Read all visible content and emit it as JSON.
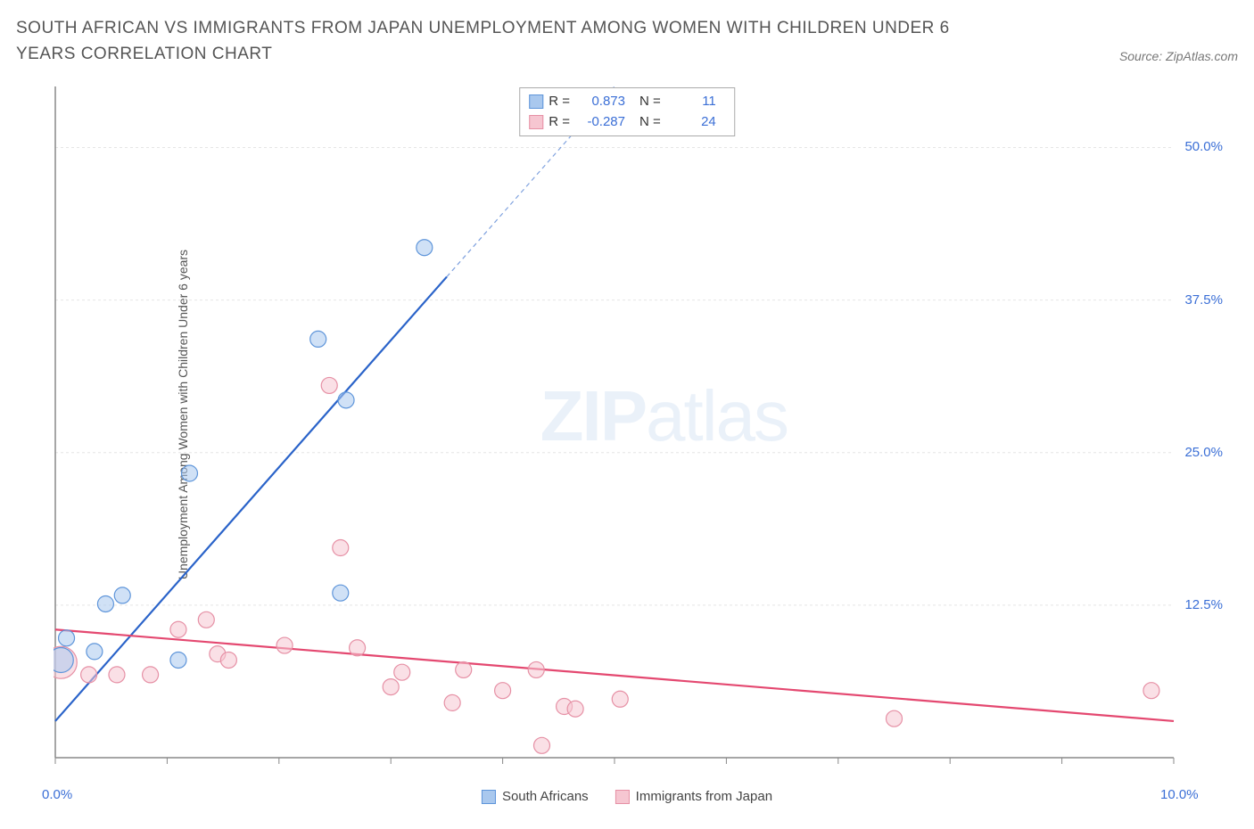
{
  "title": "SOUTH AFRICAN VS IMMIGRANTS FROM JAPAN UNEMPLOYMENT AMONG WOMEN WITH CHILDREN UNDER 6 YEARS CORRELATION CHART",
  "source_text": "Source: ZipAtlas.com",
  "y_axis_label": "Unemployment Among Women with Children Under 6 years",
  "watermark": {
    "bold": "ZIP",
    "light": "atlas"
  },
  "chart": {
    "type": "scatter",
    "background_color": "#ffffff",
    "grid_color": "#e5e5e5",
    "axis_color": "#888888",
    "xlim": [
      0,
      10
    ],
    "ylim": [
      0,
      55
    ],
    "x_ticks": [
      0,
      1,
      2,
      3,
      4,
      5,
      6,
      7,
      8,
      9,
      10
    ],
    "x_tick_labels": {
      "0": "0.0%",
      "10": "10.0%"
    },
    "y_gridlines": [
      12.5,
      25.0,
      37.5,
      50.0
    ],
    "y_tick_labels": [
      "12.5%",
      "25.0%",
      "37.5%",
      "50.0%"
    ],
    "marker_radius": 9,
    "marker_stroke_width": 1.2,
    "trend_line_width": 2.2,
    "trend_dash": "5,4"
  },
  "series": [
    {
      "name": "South Africans",
      "fill_color": "#a9c8ee",
      "stroke_color": "#5e95da",
      "line_color": "#2a63c9",
      "points": [
        {
          "x": 0.05,
          "y": 8.0,
          "r": 14
        },
        {
          "x": 0.1,
          "y": 9.8,
          "r": 9
        },
        {
          "x": 0.35,
          "y": 8.7,
          "r": 9
        },
        {
          "x": 0.45,
          "y": 12.6,
          "r": 9
        },
        {
          "x": 0.6,
          "y": 13.3,
          "r": 9
        },
        {
          "x": 1.1,
          "y": 8.0,
          "r": 9
        },
        {
          "x": 1.2,
          "y": 23.3,
          "r": 9
        },
        {
          "x": 2.55,
          "y": 13.5,
          "r": 9
        },
        {
          "x": 2.6,
          "y": 29.3,
          "r": 9
        },
        {
          "x": 2.35,
          "y": 34.3,
          "r": 9
        },
        {
          "x": 3.3,
          "y": 41.8,
          "r": 9
        }
      ],
      "trend": {
        "x1": 0.0,
        "y1": 3.0,
        "x2": 5.0,
        "y2": 55.0,
        "dash_from_x": 3.5
      },
      "stats": {
        "R": "0.873",
        "N": "11"
      }
    },
    {
      "name": "Immigrants from Japan",
      "fill_color": "#f6c6d1",
      "stroke_color": "#e690a5",
      "line_color": "#e44870",
      "points": [
        {
          "x": 0.05,
          "y": 7.8,
          "r": 18
        },
        {
          "x": 0.3,
          "y": 6.8,
          "r": 9
        },
        {
          "x": 0.55,
          "y": 6.8,
          "r": 9
        },
        {
          "x": 0.85,
          "y": 6.8,
          "r": 9
        },
        {
          "x": 1.1,
          "y": 10.5,
          "r": 9
        },
        {
          "x": 1.35,
          "y": 11.3,
          "r": 9
        },
        {
          "x": 1.45,
          "y": 8.5,
          "r": 9
        },
        {
          "x": 1.55,
          "y": 8.0,
          "r": 9
        },
        {
          "x": 2.05,
          "y": 9.2,
          "r": 9
        },
        {
          "x": 2.45,
          "y": 30.5,
          "r": 9
        },
        {
          "x": 2.55,
          "y": 17.2,
          "r": 9
        },
        {
          "x": 2.7,
          "y": 9.0,
          "r": 9
        },
        {
          "x": 3.0,
          "y": 5.8,
          "r": 9
        },
        {
          "x": 3.1,
          "y": 7.0,
          "r": 9
        },
        {
          "x": 3.55,
          "y": 4.5,
          "r": 9
        },
        {
          "x": 3.65,
          "y": 7.2,
          "r": 9
        },
        {
          "x": 4.0,
          "y": 5.5,
          "r": 9
        },
        {
          "x": 4.3,
          "y": 7.2,
          "r": 9
        },
        {
          "x": 4.35,
          "y": 1.0,
          "r": 9
        },
        {
          "x": 4.55,
          "y": 4.2,
          "r": 9
        },
        {
          "x": 4.65,
          "y": 4.0,
          "r": 9
        },
        {
          "x": 5.05,
          "y": 4.8,
          "r": 9
        },
        {
          "x": 7.5,
          "y": 3.2,
          "r": 9
        },
        {
          "x": 9.8,
          "y": 5.5,
          "r": 9
        }
      ],
      "trend": {
        "x1": 0.0,
        "y1": 10.5,
        "x2": 10.0,
        "y2": 3.0
      },
      "stats": {
        "R": "-0.287",
        "N": "24"
      }
    }
  ],
  "legend": {
    "items": [
      {
        "label": "South Africans",
        "fill": "#a9c8ee",
        "stroke": "#5e95da"
      },
      {
        "label": "Immigrants from Japan",
        "fill": "#f6c6d1",
        "stroke": "#e690a5"
      }
    ]
  },
  "stats_labels": {
    "R": "R =",
    "N": "N ="
  }
}
